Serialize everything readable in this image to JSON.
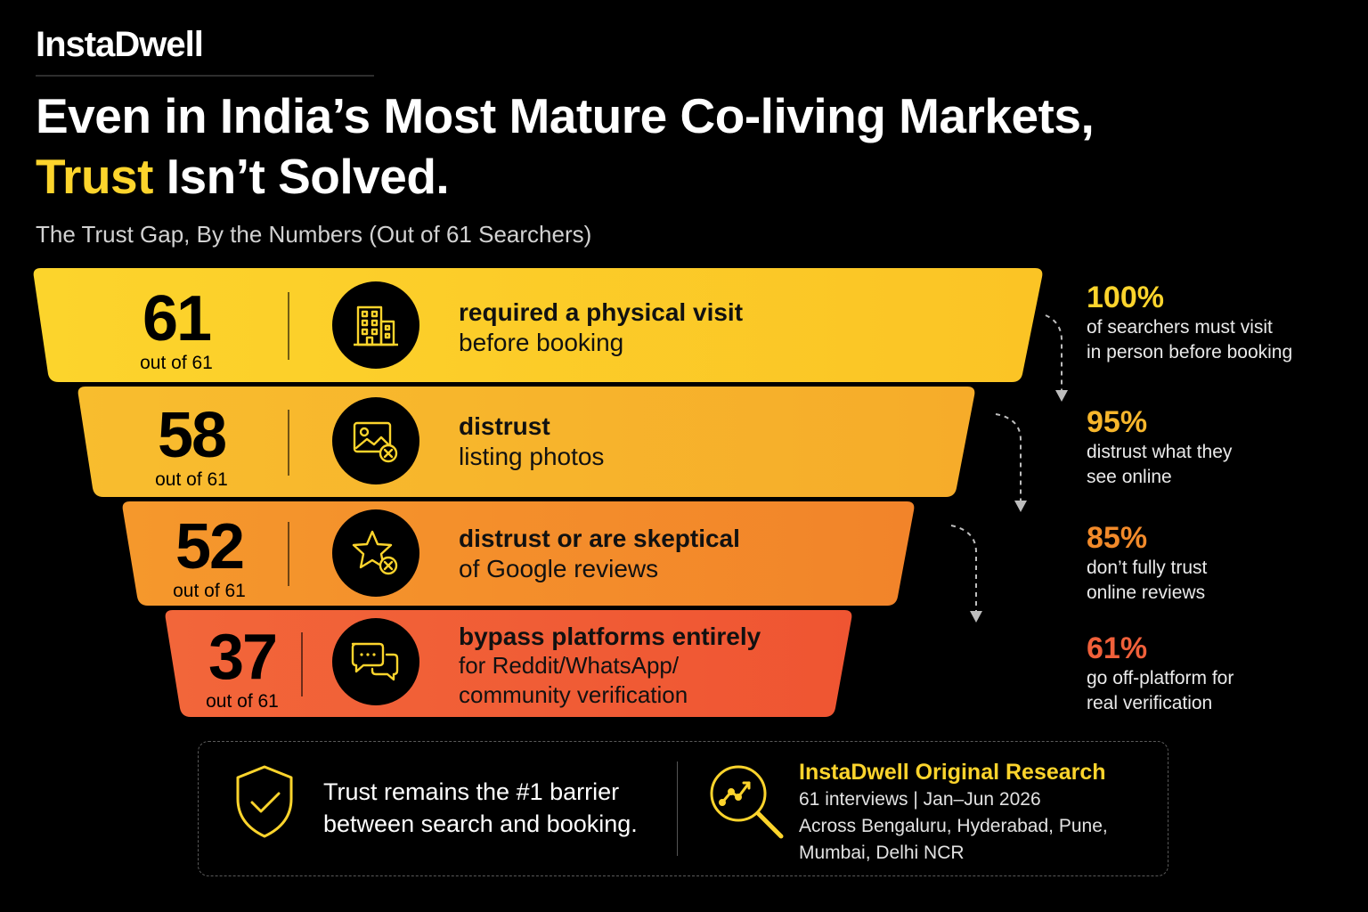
{
  "brand": "InstaDwell",
  "headline": {
    "line1": "Even in India’s Most Mature Co-living Markets,",
    "highlight": "Trust",
    "line2_rest": " Isn’t Solved."
  },
  "subtitle": "The Trust Gap, By the Numbers (Out of 61 Searchers)",
  "colors": {
    "yellow": "#fcd42c",
    "amber": "#f6b62c",
    "orange": "#f28a2a",
    "red": "#f0603a",
    "accent_yellow": "#fcd42c"
  },
  "funnel": [
    {
      "number": "61",
      "of_total": "out of 61",
      "bold": "required a physical visit",
      "rest": [
        "before booking"
      ],
      "icon": "building-icon"
    },
    {
      "number": "58",
      "of_total": "out of 61",
      "bold": "distrust",
      "rest": [
        "listing photos"
      ],
      "icon": "image-x-icon"
    },
    {
      "number": "52",
      "of_total": "out of 61",
      "bold": "distrust or are skeptical",
      "rest": [
        "of Google reviews"
      ],
      "icon": "star-x-icon"
    },
    {
      "number": "37",
      "of_total": "out of 61",
      "bold": "bypass platforms entirely",
      "rest": [
        "for Reddit/WhatsApp/",
        "community verification"
      ],
      "icon": "chat-bubbles-icon"
    }
  ],
  "stats": [
    {
      "pct": "100%",
      "lines": [
        "of searchers must visit",
        "in person before booking"
      ],
      "color": "#fcd42c"
    },
    {
      "pct": "95%",
      "lines": [
        "distrust what they",
        "see online"
      ],
      "color": "#f6b62c"
    },
    {
      "pct": "85%",
      "lines": [
        "don’t fully trust",
        "online reviews"
      ],
      "color": "#f28a2a"
    },
    {
      "pct": "61%",
      "lines": [
        "go off-platform for",
        "real verification"
      ],
      "color": "#f0603a"
    }
  ],
  "footer": {
    "message_lines": [
      "Trust remains the #1 barrier",
      "between search and booking."
    ],
    "research_title": "InstaDwell Original Research",
    "research_lines": [
      "61 interviews | Jan–Jun 2026",
      "Across Bengaluru, Hyderabad, Pune,",
      "Mumbai, Delhi NCR"
    ],
    "shield_icon": "shield-check-icon",
    "research_icon": "magnifier-chart-icon"
  }
}
